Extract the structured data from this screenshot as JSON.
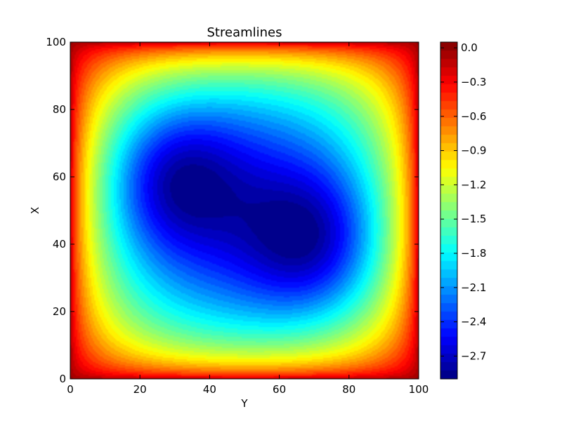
{
  "chart_data": {
    "type": "heatmap",
    "title": "Streamlines",
    "xlabel": "Y",
    "ylabel": "X",
    "xlim": [
      0,
      100
    ],
    "ylim": [
      0,
      100
    ],
    "x_ticks": [
      "0",
      "20",
      "40",
      "60",
      "80",
      "100"
    ],
    "y_ticks": [
      "0",
      "20",
      "40",
      "60",
      "80",
      "100"
    ],
    "colorbar": {
      "colormap": "jet",
      "range": [
        -2.9,
        0.05
      ],
      "tick_values": [
        0.0,
        -0.3,
        -0.6,
        -0.9,
        -1.2,
        -1.5,
        -1.8,
        -2.1,
        -2.4,
        -2.7
      ],
      "tick_labels": [
        "0.0",
        "−0.3",
        "−0.6",
        "−0.9",
        "−1.2",
        "−1.5",
        "−1.8",
        "−2.1",
        "−2.4",
        "−2.7"
      ]
    },
    "field": {
      "boundary_value": 0.0,
      "minima": [
        {
          "x": 28,
          "y": 60,
          "value": -2.85
        },
        {
          "x": 71,
          "y": 40,
          "value": -2.85
        }
      ]
    }
  }
}
